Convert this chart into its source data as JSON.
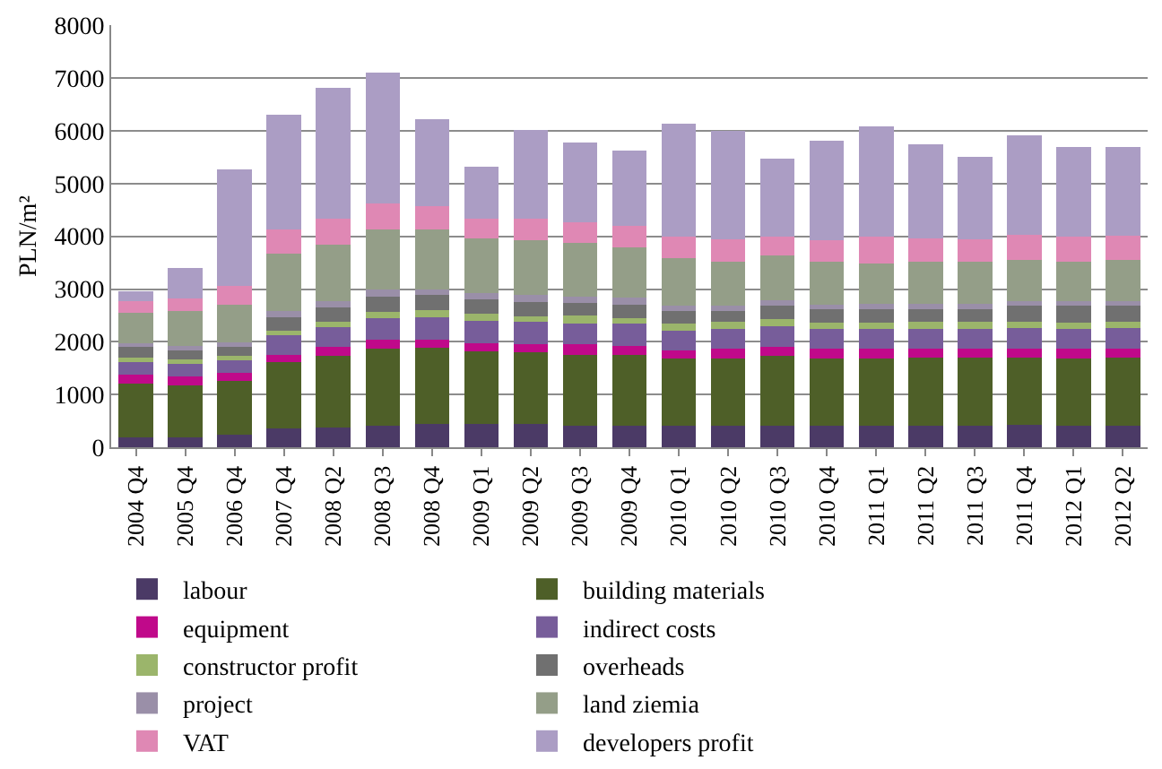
{
  "chart_data": {
    "type": "bar",
    "stacked": true,
    "ylabel": "PLN/m²",
    "categories": [
      "2004 Q4",
      "2005 Q4",
      "2006 Q4",
      "2007 Q4",
      "2008 Q2",
      "2008 Q3",
      "2008 Q4",
      "2009 Q1",
      "2009 Q2",
      "2009 Q3",
      "2009 Q4",
      "2010 Q1",
      "2010 Q2",
      "2010 Q3",
      "2010 Q4",
      "2011 Q1",
      "2011 Q2",
      "2011 Q3",
      "2011 Q4",
      "2012 Q1",
      "2012 Q2"
    ],
    "series": [
      {
        "name": "labour",
        "color": "#4b3a66",
        "values": [
          190,
          190,
          240,
          365,
          385,
          410,
          445,
          445,
          445,
          410,
          410,
          410,
          410,
          410,
          410,
          410,
          410,
          410,
          430,
          410,
          410
        ]
      },
      {
        "name": "building materials",
        "color": "#4e5f28",
        "values": [
          1025,
          990,
          1020,
          1260,
          1355,
          1455,
          1440,
          1385,
          1360,
          1350,
          1350,
          1270,
          1270,
          1330,
          1270,
          1270,
          1295,
          1295,
          1275,
          1270,
          1295
        ]
      },
      {
        "name": "equipment",
        "color": "#c0098a",
        "values": [
          160,
          170,
          150,
          135,
          160,
          170,
          150,
          145,
          150,
          195,
          160,
          160,
          195,
          170,
          185,
          185,
          160,
          160,
          160,
          185,
          160
        ]
      },
      {
        "name": "indirect costs",
        "color": "#775d9a",
        "values": [
          240,
          240,
          240,
          365,
          385,
          420,
          430,
          420,
          420,
          385,
          420,
          375,
          375,
          395,
          375,
          385,
          385,
          385,
          405,
          385,
          405
        ]
      },
      {
        "name": "constructor profit",
        "color": "#9bb56b",
        "values": [
          85,
          80,
          80,
          90,
          100,
          110,
          135,
          140,
          115,
          160,
          115,
          135,
          125,
          135,
          125,
          115,
          125,
          125,
          105,
          115,
          105
        ]
      },
      {
        "name": "overheads",
        "color": "#707070",
        "values": [
          200,
          170,
          170,
          250,
          260,
          300,
          295,
          270,
          270,
          240,
          250,
          240,
          215,
          240,
          250,
          260,
          250,
          250,
          305,
          315,
          310
        ]
      },
      {
        "name": "project",
        "color": "#9a8fa8",
        "values": [
          75,
          80,
          90,
          115,
          125,
          125,
          105,
          125,
          125,
          110,
          135,
          100,
          100,
          115,
          90,
          100,
          100,
          100,
          90,
          90,
          90
        ]
      },
      {
        "name": "land ziemia",
        "color": "#949e88",
        "values": [
          580,
          670,
          710,
          1090,
          1080,
          1135,
          1125,
          1025,
          1035,
          1025,
          955,
          890,
          830,
          850,
          815,
          765,
          795,
          795,
          775,
          750,
          775
        ]
      },
      {
        "name": "VAT",
        "color": "#df88b4",
        "values": [
          215,
          240,
          355,
          455,
          480,
          500,
          440,
          375,
          410,
          395,
          395,
          420,
          420,
          355,
          410,
          510,
          445,
          420,
          490,
          480,
          455
        ]
      },
      {
        "name": "developers profit",
        "color": "#ab9dc4",
        "values": [
          195,
          565,
          2205,
          2170,
          2475,
          2475,
          1660,
          985,
          1690,
          1510,
          1435,
          2135,
          2060,
          1475,
          1885,
          2090,
          1785,
          1570,
          1870,
          1690,
          1690
        ]
      }
    ],
    "ylim": [
      0,
      8000
    ],
    "yticks": [
      0,
      1000,
      2000,
      3000,
      4000,
      5000,
      6000,
      7000,
      8000
    ],
    "grid": "y",
    "legend": "bottom"
  }
}
